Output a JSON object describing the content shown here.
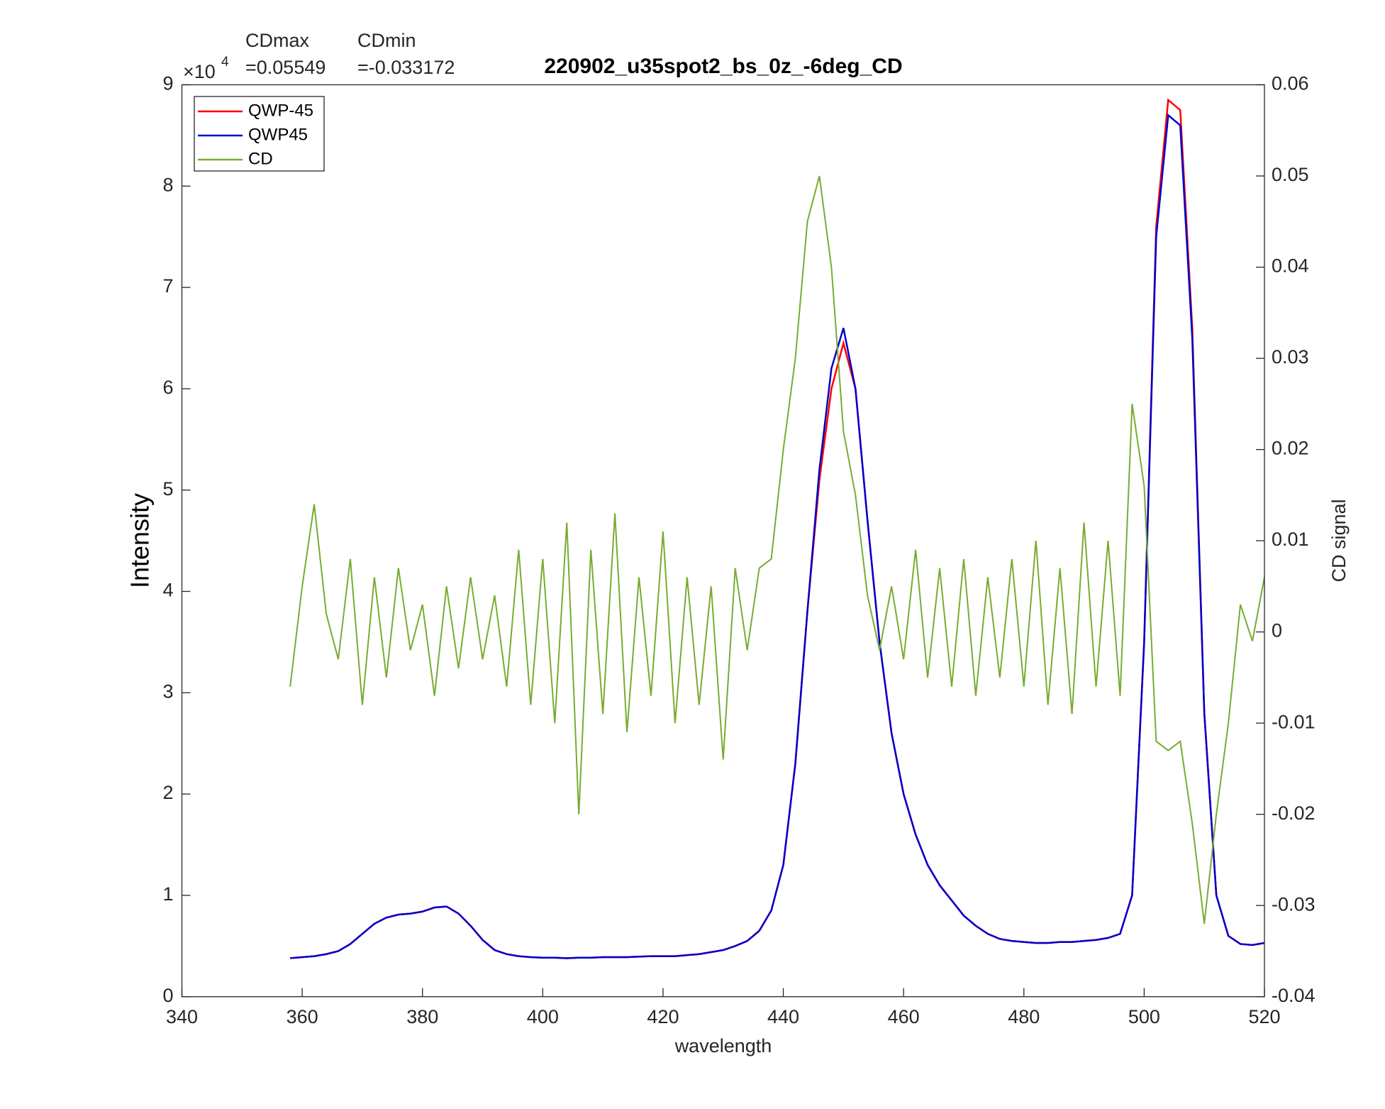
{
  "chart_data": {
    "type": "line",
    "title": "220902_u35spot2_bs_0z_-6deg_CD",
    "annotations": [
      {
        "label": "CDmax",
        "text": "=0.05549"
      },
      {
        "label": "CDmin",
        "text": "=-0.033172"
      }
    ],
    "y_exponent": {
      "base": "×10",
      "power": "4"
    },
    "xlabel": "wavelength",
    "ylabel": "Intensity",
    "y2label": "CD signal",
    "x": [
      358,
      360,
      362,
      364,
      366,
      368,
      370,
      372,
      374,
      376,
      378,
      380,
      382,
      384,
      386,
      388,
      390,
      392,
      394,
      396,
      398,
      400,
      402,
      404,
      406,
      408,
      410,
      412,
      414,
      416,
      418,
      420,
      422,
      424,
      426,
      428,
      430,
      432,
      434,
      436,
      438,
      440,
      442,
      444,
      446,
      448,
      450,
      452,
      454,
      456,
      458,
      460,
      462,
      464,
      466,
      468,
      470,
      472,
      474,
      476,
      478,
      480,
      482,
      484,
      486,
      488,
      490,
      492,
      494,
      496,
      498,
      500,
      502,
      504,
      506,
      508,
      510,
      512,
      514,
      516,
      518,
      520
    ],
    "series": [
      {
        "name": "QWP-45",
        "color": "#ff0000",
        "values": [
          0.38,
          0.39,
          0.4,
          0.42,
          0.45,
          0.52,
          0.62,
          0.72,
          0.78,
          0.81,
          0.82,
          0.84,
          0.88,
          0.89,
          0.82,
          0.7,
          0.56,
          0.46,
          0.42,
          0.4,
          0.39,
          0.385,
          0.385,
          0.38,
          0.385,
          0.385,
          0.39,
          0.39,
          0.39,
          0.395,
          0.4,
          0.4,
          0.4,
          0.41,
          0.42,
          0.44,
          0.46,
          0.5,
          0.55,
          0.65,
          0.85,
          1.3,
          2.3,
          3.8,
          5.1,
          6.0,
          6.45,
          6.0,
          4.7,
          3.5,
          2.6,
          2.0,
          1.6,
          1.3,
          1.1,
          0.95,
          0.8,
          0.7,
          0.62,
          0.57,
          0.55,
          0.54,
          0.53,
          0.53,
          0.54,
          0.54,
          0.55,
          0.56,
          0.58,
          0.62,
          1.0,
          3.5,
          7.6,
          8.85,
          8.75,
          6.6,
          2.8,
          1.0,
          0.6,
          0.52,
          0.51,
          0.53
        ]
      },
      {
        "name": "QWP45",
        "color": "#0000cc",
        "values": [
          0.38,
          0.39,
          0.4,
          0.42,
          0.45,
          0.52,
          0.62,
          0.72,
          0.78,
          0.81,
          0.82,
          0.84,
          0.88,
          0.89,
          0.82,
          0.7,
          0.56,
          0.46,
          0.42,
          0.4,
          0.39,
          0.385,
          0.385,
          0.38,
          0.385,
          0.385,
          0.39,
          0.39,
          0.39,
          0.395,
          0.4,
          0.4,
          0.4,
          0.41,
          0.42,
          0.44,
          0.46,
          0.5,
          0.55,
          0.65,
          0.85,
          1.3,
          2.3,
          3.8,
          5.2,
          6.2,
          6.6,
          6.0,
          4.7,
          3.5,
          2.6,
          2.0,
          1.6,
          1.3,
          1.1,
          0.95,
          0.8,
          0.7,
          0.62,
          0.57,
          0.55,
          0.54,
          0.53,
          0.53,
          0.54,
          0.54,
          0.55,
          0.56,
          0.58,
          0.62,
          1.0,
          3.5,
          7.5,
          8.7,
          8.6,
          6.5,
          2.8,
          1.0,
          0.6,
          0.52,
          0.51,
          0.53
        ]
      },
      {
        "name": "CD",
        "color": "#77ac30",
        "axis": "y2",
        "values": [
          -0.006,
          0.005,
          0.014,
          0.002,
          -0.003,
          0.008,
          -0.008,
          0.006,
          -0.005,
          0.007,
          -0.002,
          0.003,
          -0.007,
          0.005,
          -0.004,
          0.006,
          -0.003,
          0.004,
          -0.006,
          0.009,
          -0.008,
          0.008,
          -0.01,
          0.012,
          -0.02,
          0.009,
          -0.009,
          0.013,
          -0.011,
          0.006,
          -0.007,
          0.011,
          -0.01,
          0.006,
          -0.008,
          0.005,
          -0.014,
          0.007,
          -0.002,
          0.007,
          0.008,
          0.02,
          0.03,
          0.045,
          0.05,
          0.04,
          0.022,
          0.015,
          0.004,
          -0.002,
          0.005,
          -0.003,
          0.009,
          -0.005,
          0.007,
          -0.006,
          0.008,
          -0.007,
          0.006,
          -0.005,
          0.008,
          -0.006,
          0.01,
          -0.008,
          0.007,
          -0.009,
          0.012,
          -0.006,
          0.01,
          -0.007,
          0.025,
          0.016,
          -0.012,
          -0.013,
          -0.012,
          -0.021,
          -0.032,
          -0.02,
          -0.01,
          0.003,
          -0.001,
          0.006
        ]
      }
    ],
    "xlim": [
      340,
      520
    ],
    "xticks": [
      340,
      360,
      380,
      400,
      420,
      440,
      460,
      480,
      500,
      520
    ],
    "ylim": [
      0,
      9
    ],
    "yticks": [
      0,
      1,
      2,
      3,
      4,
      5,
      6,
      7,
      8,
      9
    ],
    "y2lim": [
      -0.04,
      0.06
    ],
    "y2ticks": [
      -0.04,
      -0.03,
      -0.02,
      -0.01,
      0,
      0.01,
      0.02,
      0.03,
      0.04,
      0.05,
      0.06
    ],
    "legend": "top-left",
    "grid": false
  }
}
